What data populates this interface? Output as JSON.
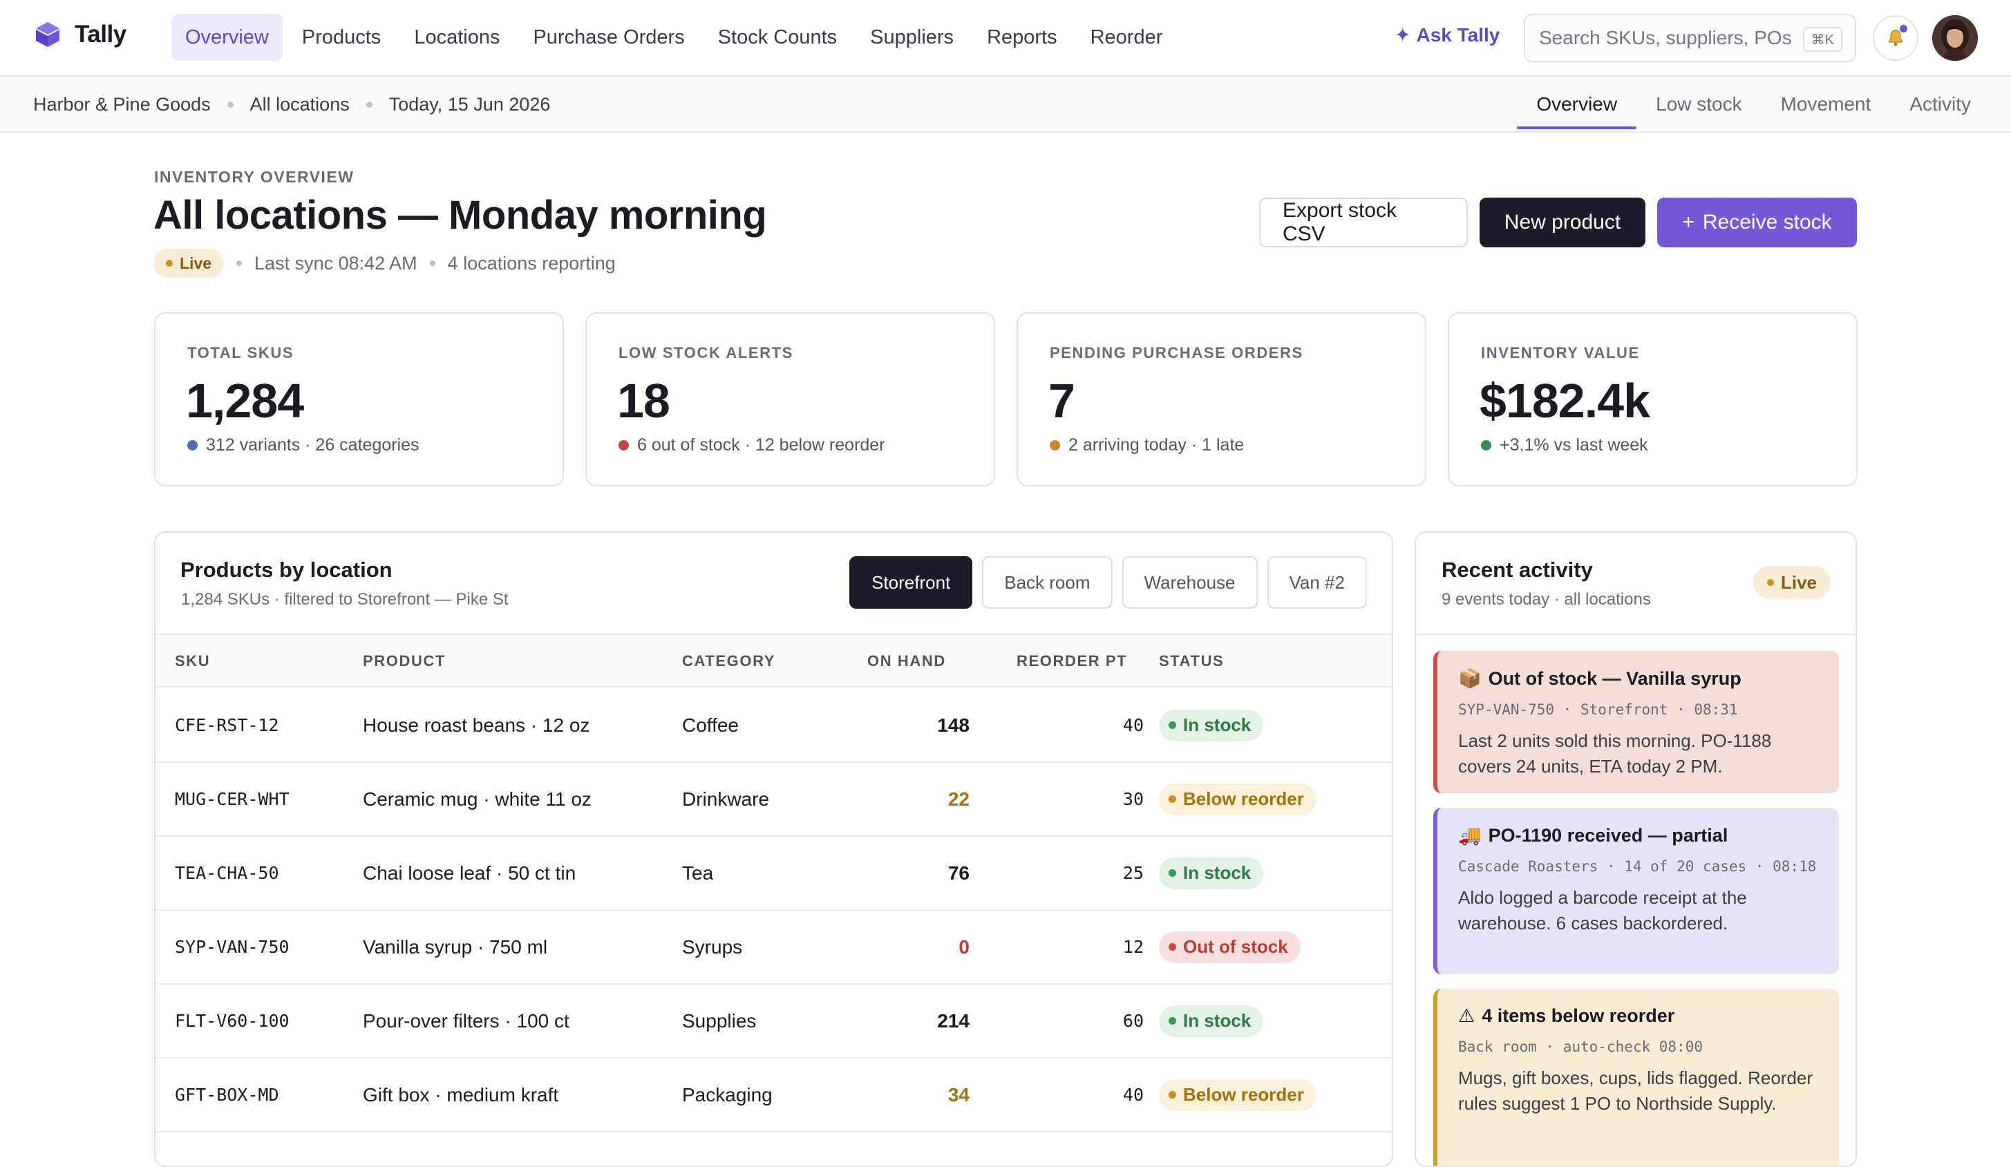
{
  "app": {
    "name": "Tally"
  },
  "nav": {
    "items": [
      {
        "label": "Overview",
        "active": true
      },
      {
        "label": "Products"
      },
      {
        "label": "Locations"
      },
      {
        "label": "Purchase Orders"
      },
      {
        "label": "Stock Counts"
      },
      {
        "label": "Suppliers"
      },
      {
        "label": "Reports"
      },
      {
        "label": "Reorder"
      }
    ],
    "ask_label": "Ask Tally",
    "search_placeholder": "Search SKUs, suppliers, POs",
    "search_shortcut": "⌘K"
  },
  "subbar": {
    "crumbs": [
      "Harbor & Pine Goods",
      "All locations",
      "Today, 15 Jun 2026"
    ],
    "tabs": [
      {
        "label": "Overview",
        "active": true
      },
      {
        "label": "Low stock"
      },
      {
        "label": "Movement"
      },
      {
        "label": "Activity"
      }
    ]
  },
  "header": {
    "eyebrow": "INVENTORY OVERVIEW",
    "title": "All locations — Monday morning",
    "live_label": "Live",
    "last_sync": "Last sync 08:42 AM",
    "locations": "4 locations reporting",
    "buttons": {
      "export": "Export stock CSV",
      "new_product": "New product",
      "receive": "Receive stock"
    }
  },
  "kpis": [
    {
      "label": "TOTAL SKUS",
      "value": "1,284",
      "sub": "312 variants · 26 categories",
      "dot_color": "#4a6fb5"
    },
    {
      "label": "LOW STOCK ALERTS",
      "value": "18",
      "sub": "6 out of stock · 12 below reorder",
      "dot_color": "#b8473c"
    },
    {
      "label": "PENDING PURCHASE ORDERS",
      "value": "7",
      "sub": "2 arriving today · 1 late",
      "dot_color": "#c28c2e"
    },
    {
      "label": "INVENTORY VALUE",
      "value": "$182.4k",
      "sub": "+3.1% vs last week",
      "dot_color": "#3b8a55"
    }
  ],
  "products": {
    "title": "Products by location",
    "subtitle": "1,284 SKUs · filtered to Storefront — Pike St",
    "location_tabs": [
      {
        "label": "Storefront",
        "active": true
      },
      {
        "label": "Back room"
      },
      {
        "label": "Warehouse"
      },
      {
        "label": "Van #2"
      }
    ],
    "columns": [
      "SKU",
      "PRODUCT",
      "CATEGORY",
      "ON HAND",
      "REORDER PT",
      "STATUS"
    ],
    "rows": [
      {
        "sku": "CFE-RST-12",
        "product": "House roast beans · 12 oz",
        "category": "Coffee",
        "on_hand": "148",
        "reorder": "40",
        "status": "In stock",
        "state": "ok"
      },
      {
        "sku": "MUG-CER-WHT",
        "product": "Ceramic mug · white 11 oz",
        "category": "Drinkware",
        "on_hand": "22",
        "reorder": "30",
        "status": "Below reorder",
        "state": "low"
      },
      {
        "sku": "TEA-CHA-50",
        "product": "Chai loose leaf · 50 ct tin",
        "category": "Tea",
        "on_hand": "76",
        "reorder": "25",
        "status": "In stock",
        "state": "ok"
      },
      {
        "sku": "SYP-VAN-750",
        "product": "Vanilla syrup · 750 ml",
        "category": "Syrups",
        "on_hand": "0",
        "reorder": "12",
        "status": "Out of stock",
        "state": "out"
      },
      {
        "sku": "FLT-V60-100",
        "product": "Pour-over filters · 100 ct",
        "category": "Supplies",
        "on_hand": "214",
        "reorder": "60",
        "status": "In stock",
        "state": "ok"
      },
      {
        "sku": "GFT-BOX-MD",
        "product": "Gift box · medium kraft",
        "category": "Packaging",
        "on_hand": "34",
        "reorder": "40",
        "status": "Below reorder",
        "state": "low"
      }
    ]
  },
  "activity": {
    "title": "Recent activity",
    "subtitle": "9 events today · all locations",
    "live_label": "Live",
    "events": [
      {
        "icon": "package-icon",
        "glyph": "📦",
        "title": "Out of stock — Vanilla syrup",
        "meta": "SYP-VAN-750 · Storefront · 08:31",
        "body": "Last 2 units sold this morning. PO-1188 covers 24 units, ETA today 2 PM.",
        "tone": "red"
      },
      {
        "icon": "truck-icon",
        "glyph": "🚚",
        "title": "PO-1190 received — partial",
        "meta": "Cascade Roasters · 14 of 20 cases · 08:18",
        "body": "Aldo logged a barcode receipt at the warehouse. 6 cases backordered.",
        "tone": "purple"
      },
      {
        "icon": "warning-icon",
        "glyph": "⚠",
        "title": "4 items below reorder",
        "meta": "Back room · auto-check 08:00",
        "body": "Mugs, gift boxes, cups, lids flagged. Reorder rules suggest 1 PO to Northside Supply.",
        "tone": "amber"
      }
    ]
  },
  "colors": {
    "accent": "#6f55d6",
    "dark": "#1c1b2c",
    "ok": "#2e7a43",
    "low": "#a3720f",
    "out": "#b93c35"
  }
}
